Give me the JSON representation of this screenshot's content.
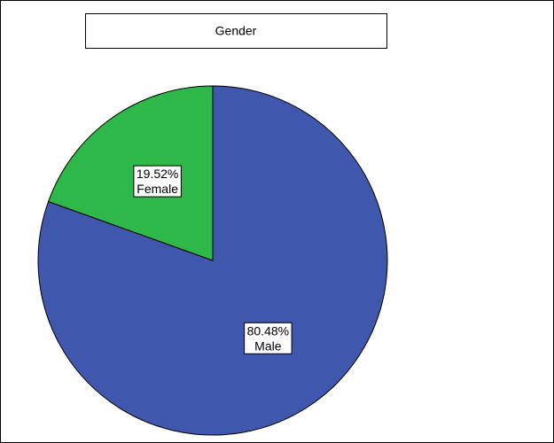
{
  "chart_data": {
    "type": "pie",
    "title": "Gender",
    "categories": [
      "Male",
      "Female"
    ],
    "values": [
      80.48,
      19.52
    ],
    "value_labels": [
      "80.48%",
      "19.52%"
    ],
    "colors": [
      "#3f58ad",
      "#2eb84a"
    ]
  }
}
